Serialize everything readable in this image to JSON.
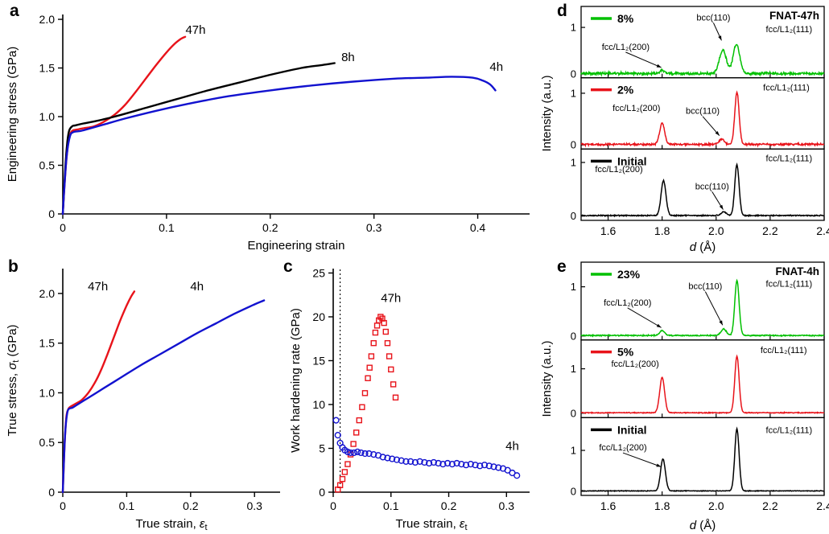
{
  "figure": {
    "panels": {
      "a": "a",
      "b": "b",
      "c": "c",
      "d": "d",
      "e": "e"
    }
  },
  "colors": {
    "red": "#e8131a",
    "blue": "#1212cf",
    "black": "#000000",
    "green": "#00c000"
  },
  "chart_data": [
    {
      "id": "a",
      "type": "line",
      "xlabel": [
        {
          "t": "Engineering strain"
        }
      ],
      "ylabel": [
        {
          "t": "Engineering stress (GPa)"
        }
      ],
      "xlim": [
        0,
        0.45
      ],
      "ylim": [
        0,
        2.05
      ],
      "xticks": [
        {
          "v": 0,
          "l": "0"
        },
        {
          "v": 0.1,
          "l": "0.1"
        },
        {
          "v": 0.2,
          "l": "0.2"
        },
        {
          "v": 0.3,
          "l": "0.3"
        },
        {
          "v": 0.4,
          "l": "0.4"
        }
      ],
      "yticks": [
        {
          "v": 0,
          "l": "0"
        },
        {
          "v": 0.5,
          "l": "0.5"
        },
        {
          "v": 1,
          "l": "1.0"
        },
        {
          "v": 1.5,
          "l": "1.5"
        },
        {
          "v": 2,
          "l": "2.0"
        }
      ],
      "series": [
        {
          "name": "47h",
          "type": "line",
          "color": "red",
          "x": [
            0,
            0.002,
            0.004,
            0.006,
            0.008,
            0.01,
            0.015,
            0.02,
            0.03,
            0.04,
            0.05,
            0.06,
            0.07,
            0.08,
            0.09,
            0.1,
            0.108,
            0.114,
            0.118
          ],
          "y": [
            0,
            0.35,
            0.62,
            0.78,
            0.84,
            0.86,
            0.87,
            0.88,
            0.9,
            0.95,
            1.02,
            1.12,
            1.25,
            1.39,
            1.53,
            1.66,
            1.75,
            1.8,
            1.82
          ]
        },
        {
          "name": "8h",
          "type": "line",
          "color": "black",
          "x": [
            0,
            0.002,
            0.004,
            0.006,
            0.009,
            0.012,
            0.02,
            0.03,
            0.05,
            0.08,
            0.11,
            0.14,
            0.17,
            0.2,
            0.23,
            0.25,
            0.262
          ],
          "y": [
            0,
            0.4,
            0.7,
            0.85,
            0.9,
            0.91,
            0.93,
            0.95,
            1,
            1.09,
            1.18,
            1.27,
            1.35,
            1.43,
            1.5,
            1.53,
            1.55
          ]
        },
        {
          "name": "4h",
          "type": "line",
          "color": "blue",
          "x": [
            0,
            0.002,
            0.004,
            0.007,
            0.01,
            0.015,
            0.02,
            0.04,
            0.06,
            0.09,
            0.12,
            0.16,
            0.2,
            0.24,
            0.28,
            0.32,
            0.35,
            0.375,
            0.395,
            0.405,
            0.412,
            0.417
          ],
          "y": [
            0,
            0.35,
            0.62,
            0.8,
            0.84,
            0.85,
            0.86,
            0.92,
            0.98,
            1.06,
            1.13,
            1.21,
            1.27,
            1.32,
            1.36,
            1.39,
            1.4,
            1.41,
            1.4,
            1.37,
            1.33,
            1.27
          ]
        }
      ],
      "labels": [
        {
          "text": "47h",
          "x": 0.128,
          "y": 1.85
        },
        {
          "text": "8h",
          "x": 0.275,
          "y": 1.57
        },
        {
          "text": "4h",
          "x": 0.418,
          "y": 1.47
        }
      ]
    },
    {
      "id": "b",
      "type": "line",
      "xlabel": [
        {
          "t": "True strain, "
        },
        {
          "t": "ε",
          "i": true
        },
        {
          "t": "t",
          "sub": true
        }
      ],
      "ylabel": [
        {
          "t": "True stress, "
        },
        {
          "t": "σ",
          "i": true
        },
        {
          "t": "t",
          "sub": true
        },
        {
          "t": " (GPa)"
        }
      ],
      "xlim": [
        0,
        0.34
      ],
      "ylim": [
        0,
        2.25
      ],
      "xticks": [
        {
          "v": 0,
          "l": "0"
        },
        {
          "v": 0.1,
          "l": "0.1"
        },
        {
          "v": 0.2,
          "l": "0.2"
        },
        {
          "v": 0.3,
          "l": "0.3"
        }
      ],
      "yticks": [
        {
          "v": 0,
          "l": "0"
        },
        {
          "v": 0.5,
          "l": "0.5"
        },
        {
          "v": 1,
          "l": "1.0"
        },
        {
          "v": 1.5,
          "l": "1.5"
        },
        {
          "v": 2,
          "l": "2.0"
        }
      ],
      "series": [
        {
          "name": "47h",
          "type": "line",
          "color": "red",
          "x": [
            0,
            0.002,
            0.004,
            0.006,
            0.009,
            0.012,
            0.02,
            0.03,
            0.04,
            0.05,
            0.06,
            0.07,
            0.08,
            0.09,
            0.1,
            0.107,
            0.112
          ],
          "y": [
            0,
            0.35,
            0.62,
            0.78,
            0.84,
            0.86,
            0.89,
            0.93,
            1,
            1.1,
            1.23,
            1.39,
            1.56,
            1.73,
            1.88,
            1.97,
            2.02
          ]
        },
        {
          "name": "4h",
          "type": "line",
          "color": "blue",
          "x": [
            0,
            0.002,
            0.004,
            0.007,
            0.01,
            0.015,
            0.02,
            0.04,
            0.06,
            0.09,
            0.12,
            0.15,
            0.18,
            0.21,
            0.24,
            0.27,
            0.3,
            0.315
          ],
          "y": [
            0,
            0.35,
            0.62,
            0.8,
            0.84,
            0.85,
            0.87,
            0.95,
            1.03,
            1.15,
            1.27,
            1.38,
            1.49,
            1.6,
            1.7,
            1.8,
            1.89,
            1.93
          ]
        }
      ],
      "labels": [
        {
          "text": "47h",
          "x": 0.055,
          "y": 2.03
        },
        {
          "text": "4h",
          "x": 0.21,
          "y": 2.03
        }
      ]
    },
    {
      "id": "c",
      "type": "scatter",
      "xlabel": [
        {
          "t": "True strain, "
        },
        {
          "t": "ε",
          "i": true
        },
        {
          "t": "t",
          "sub": true
        }
      ],
      "ylabel": [
        {
          "t": "Work hardening rate (GPa)"
        }
      ],
      "xlim": [
        0,
        0.34
      ],
      "ylim": [
        0,
        25.5
      ],
      "xticks": [
        {
          "v": 0,
          "l": "0"
        },
        {
          "v": 0.1,
          "l": "0.1"
        },
        {
          "v": 0.2,
          "l": "0.2"
        },
        {
          "v": 0.3,
          "l": "0.3"
        }
      ],
      "yticks": [
        {
          "v": 0,
          "l": "0"
        },
        {
          "v": 5,
          "l": "5"
        },
        {
          "v": 10,
          "l": "10"
        },
        {
          "v": 15,
          "l": "15"
        },
        {
          "v": 20,
          "l": "20"
        },
        {
          "v": 25,
          "l": "25"
        }
      ],
      "vline": {
        "x": 0.012
      },
      "series": [
        {
          "name": "47h",
          "type": "scatter",
          "marker": "square",
          "color": "red",
          "x": [
            0.008,
            0.012,
            0.016,
            0.02,
            0.025,
            0.03,
            0.035,
            0.04,
            0.045,
            0.05,
            0.055,
            0.06,
            0.063,
            0.066,
            0.07,
            0.073,
            0.076,
            0.079,
            0.082,
            0.085,
            0.088,
            0.091,
            0.094,
            0.097,
            0.1,
            0.104,
            0.108
          ],
          "y": [
            0.3,
            0.8,
            1.5,
            2.3,
            3.2,
            4.3,
            5.5,
            6.8,
            8.2,
            9.7,
            11.3,
            13,
            14.2,
            15.5,
            17,
            18.2,
            19,
            19.6,
            20,
            19.8,
            19.3,
            18.3,
            17,
            15.5,
            14,
            12.3,
            10.8
          ]
        },
        {
          "name": "4h",
          "type": "scatter",
          "marker": "circle",
          "color": "blue",
          "x": [
            0.005,
            0.008,
            0.012,
            0.016,
            0.02,
            0.025,
            0.03,
            0.036,
            0.042,
            0.048,
            0.055,
            0.062,
            0.07,
            0.078,
            0.086,
            0.094,
            0.102,
            0.11,
            0.118,
            0.126,
            0.134,
            0.142,
            0.15,
            0.158,
            0.166,
            0.174,
            0.182,
            0.19,
            0.198,
            0.206,
            0.214,
            0.222,
            0.23,
            0.238,
            0.246,
            0.254,
            0.262,
            0.27,
            0.278,
            0.286,
            0.294,
            0.302,
            0.31,
            0.318
          ],
          "y": [
            8.2,
            6.5,
            5.6,
            5.1,
            4.8,
            4.6,
            4.5,
            4.5,
            4.6,
            4.5,
            4.4,
            4.4,
            4.3,
            4.2,
            4,
            3.9,
            3.8,
            3.7,
            3.6,
            3.5,
            3.5,
            3.4,
            3.5,
            3.4,
            3.3,
            3.4,
            3.3,
            3.2,
            3.3,
            3.2,
            3.3,
            3.2,
            3.1,
            3.2,
            3.1,
            3,
            3.1,
            3,
            2.9,
            2.8,
            2.7,
            2.5,
            2.2,
            1.9
          ]
        }
      ],
      "labels": [
        {
          "text": "47h",
          "x": 0.1,
          "y": 21.7
        },
        {
          "text": "4h",
          "x": 0.31,
          "y": 4.8
        }
      ]
    },
    {
      "id": "d",
      "type": "diffraction-stack",
      "corner_label": "FNAT-47h",
      "xlabel": [
        {
          "t": "d",
          "i": true
        },
        {
          "t": " (Å)"
        }
      ],
      "ylabel": [
        {
          "t": "Intensity (a.u.)"
        }
      ],
      "xlim": [
        1.5,
        2.4
      ],
      "xticks": [
        {
          "v": 1.6,
          "l": "1.6"
        },
        {
          "v": 1.8,
          "l": "1.8"
        },
        {
          "v": 2,
          "l": "2.0"
        },
        {
          "v": 2.2,
          "l": "2.2"
        },
        {
          "v": 2.4,
          "l": "2.4"
        }
      ],
      "subpanels": [
        {
          "legend": "8%",
          "color": "green",
          "ylim": [
            -0.08,
            1.45
          ],
          "yticks": [
            {
              "v": 0,
              "l": "0"
            },
            {
              "v": 1,
              "l": "1"
            }
          ],
          "noise": 0.045,
          "peaks": [
            {
              "c": 1.8,
              "h": 0.07,
              "w": 0.008
            },
            {
              "c": 2.025,
              "h": 0.5,
              "w": 0.013
            },
            {
              "c": 2.075,
              "h": 0.63,
              "w": 0.012
            }
          ],
          "annotations": [
            {
              "text": "fcc/L1₂(200)",
              "tx": 1.665,
              "ty": 0.52,
              "ax": 1.797,
              "ay": 0.14,
              "arrow": true
            },
            {
              "text": "bcc(110)",
              "tx": 1.99,
              "ty": 1.15,
              "ax": 2.02,
              "ay": 0.72,
              "arrow": true
            },
            {
              "text": "fcc/L1₂(111)",
              "tx": 2.27,
              "ty": 0.9
            }
          ]
        },
        {
          "legend": "2%",
          "color": "red",
          "ylim": [
            -0.08,
            1.3
          ],
          "yticks": [
            {
              "v": 0,
              "l": "0"
            },
            {
              "v": 1,
              "l": "1"
            }
          ],
          "noise": 0.03,
          "peaks": [
            {
              "c": 1.8,
              "h": 0.42,
              "w": 0.009
            },
            {
              "c": 2.02,
              "h": 0.1,
              "w": 0.01
            },
            {
              "c": 2.077,
              "h": 1,
              "w": 0.008
            }
          ],
          "annotations": [
            {
              "text": "fcc/L1₂(200)",
              "tx": 1.705,
              "ty": 0.66
            },
            {
              "text": "bcc(110)",
              "tx": 1.95,
              "ty": 0.6,
              "ax": 2.012,
              "ay": 0.18,
              "arrow": true
            },
            {
              "text": "fcc/L1₂(111)",
              "tx": 2.26,
              "ty": 1.05
            }
          ]
        },
        {
          "legend": "Initial",
          "color": "black",
          "ylim": [
            -0.08,
            1.25
          ],
          "yticks": [
            {
              "v": 0,
              "l": "0"
            },
            {
              "v": 1,
              "l": "1"
            }
          ],
          "noise": 0.015,
          "peaks": [
            {
              "c": 1.805,
              "h": 0.65,
              "w": 0.009
            },
            {
              "c": 2.028,
              "h": 0.07,
              "w": 0.009
            },
            {
              "c": 2.077,
              "h": 0.95,
              "w": 0.008
            }
          ],
          "annotations": [
            {
              "text": "fcc/L1₂(200)",
              "tx": 1.64,
              "ty": 0.82
            },
            {
              "text": "bcc(110)",
              "tx": 1.985,
              "ty": 0.5,
              "ax": 2.026,
              "ay": 0.12,
              "arrow": true
            },
            {
              "text": "fcc/L1₂(111)",
              "tx": 2.27,
              "ty": 1.02
            }
          ]
        }
      ]
    },
    {
      "id": "e",
      "type": "diffraction-stack",
      "corner_label": "FNAT-4h",
      "xlabel": [
        {
          "t": "d",
          "i": true
        },
        {
          "t": " (Å)"
        }
      ],
      "ylabel": [
        {
          "t": "Intensity (a.u.)"
        }
      ],
      "xlim": [
        1.5,
        2.4
      ],
      "xticks": [
        {
          "v": 1.6,
          "l": "1.6"
        },
        {
          "v": 1.8,
          "l": "1.8"
        },
        {
          "v": 2,
          "l": "2.0"
        },
        {
          "v": 2.2,
          "l": "2.2"
        },
        {
          "v": 2.4,
          "l": "2.4"
        }
      ],
      "subpanels": [
        {
          "legend": "23%",
          "color": "green",
          "ylim": [
            -0.08,
            1.5
          ],
          "yticks": [
            {
              "v": 0,
              "l": "0"
            },
            {
              "v": 1,
              "l": "1"
            }
          ],
          "noise": 0.018,
          "peaks": [
            {
              "c": 1.8,
              "h": 0.1,
              "w": 0.009
            },
            {
              "c": 2.028,
              "h": 0.13,
              "w": 0.01
            },
            {
              "c": 2.077,
              "h": 1.12,
              "w": 0.008
            }
          ],
          "annotations": [
            {
              "text": "fcc/L1₂(200)",
              "tx": 1.672,
              "ty": 0.62,
              "ax": 1.797,
              "ay": 0.17,
              "arrow": true
            },
            {
              "text": "bcc(110)",
              "tx": 1.96,
              "ty": 0.95,
              "ax": 2.024,
              "ay": 0.22,
              "arrow": true
            },
            {
              "text": "fcc/L1₂(111)",
              "tx": 2.27,
              "ty": 1.0
            }
          ]
        },
        {
          "legend": "5%",
          "color": "red",
          "ylim": [
            -0.1,
            1.65
          ],
          "yticks": [
            {
              "v": 0,
              "l": "0"
            },
            {
              "v": 1,
              "l": "1"
            }
          ],
          "noise": 0.015,
          "peaks": [
            {
              "c": 1.8,
              "h": 0.8,
              "w": 0.009
            },
            {
              "c": 2.077,
              "h": 1.27,
              "w": 0.008
            }
          ],
          "annotations": [
            {
              "text": "fcc/L1₂(200)",
              "tx": 1.7,
              "ty": 1.05
            },
            {
              "text": "fcc/L1₂(111)",
              "tx": 2.25,
              "ty": 1.35
            }
          ]
        },
        {
          "legend": "Initial",
          "color": "black",
          "ylim": [
            -0.1,
            1.8
          ],
          "yticks": [
            {
              "v": 0,
              "l": "0"
            },
            {
              "v": 1,
              "l": "1"
            }
          ],
          "noise": 0.012,
          "peaks": [
            {
              "c": 1.803,
              "h": 0.78,
              "w": 0.009
            },
            {
              "c": 2.077,
              "h": 1.52,
              "w": 0.008
            }
          ],
          "annotations": [
            {
              "text": "fcc/L1₂(200)",
              "tx": 1.655,
              "ty": 1.0,
              "ax": 1.796,
              "ay": 0.6,
              "arrow": true
            },
            {
              "text": "fcc/L1₂(111)",
              "tx": 2.27,
              "ty": 1.42
            }
          ]
        }
      ]
    }
  ]
}
